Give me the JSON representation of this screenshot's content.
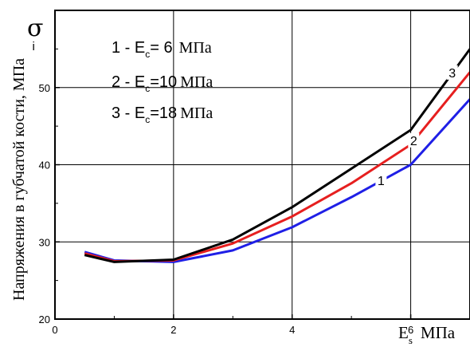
{
  "chart_data": {
    "type": "line",
    "xlabel_symbol": "E",
    "xlabel_sub": "s",
    "xlabel_unit": "МПа",
    "ylabel": "Напряжения в губчатой кости, МПа",
    "y_symbol": "σ",
    "y_symbol_sub": "i",
    "xlim": [
      0,
      7
    ],
    "ylim": [
      20,
      60
    ],
    "xticks": [
      0,
      2,
      4,
      6
    ],
    "yticks": [
      20,
      30,
      40,
      50
    ],
    "grid": true,
    "legend": {
      "placement": "top-left",
      "entries": [
        {
          "prefix": "1 - ",
          "sym": "E",
          "sub": "c",
          "eq": "= 6",
          "unit": "МПа"
        },
        {
          "prefix": "2 - ",
          "sym": "E",
          "sub": "c",
          "eq": "=10",
          "unit": "МПа"
        },
        {
          "prefix": "3 - ",
          "sym": "E",
          "sub": "c",
          "eq": "=18",
          "unit": "МПа"
        }
      ]
    },
    "series": [
      {
        "name": "1",
        "color": "#1f1fe6",
        "x": [
          0.5,
          1,
          2,
          3,
          4,
          5,
          6,
          7
        ],
        "y": [
          28.7,
          27.6,
          27.4,
          28.9,
          31.9,
          35.8,
          40.0,
          48.5
        ]
      },
      {
        "name": "2",
        "color": "#e61f1f",
        "x": [
          0.5,
          1,
          2,
          3,
          4,
          5,
          6,
          7
        ],
        "y": [
          28.5,
          27.5,
          27.6,
          29.8,
          33.3,
          37.6,
          42.6,
          52.0
        ]
      },
      {
        "name": "3",
        "color": "#000000",
        "x": [
          0.5,
          1,
          2,
          3,
          4,
          5,
          6,
          7
        ],
        "y": [
          28.3,
          27.4,
          27.7,
          30.3,
          34.5,
          39.5,
          44.5,
          55.0
        ]
      }
    ]
  }
}
